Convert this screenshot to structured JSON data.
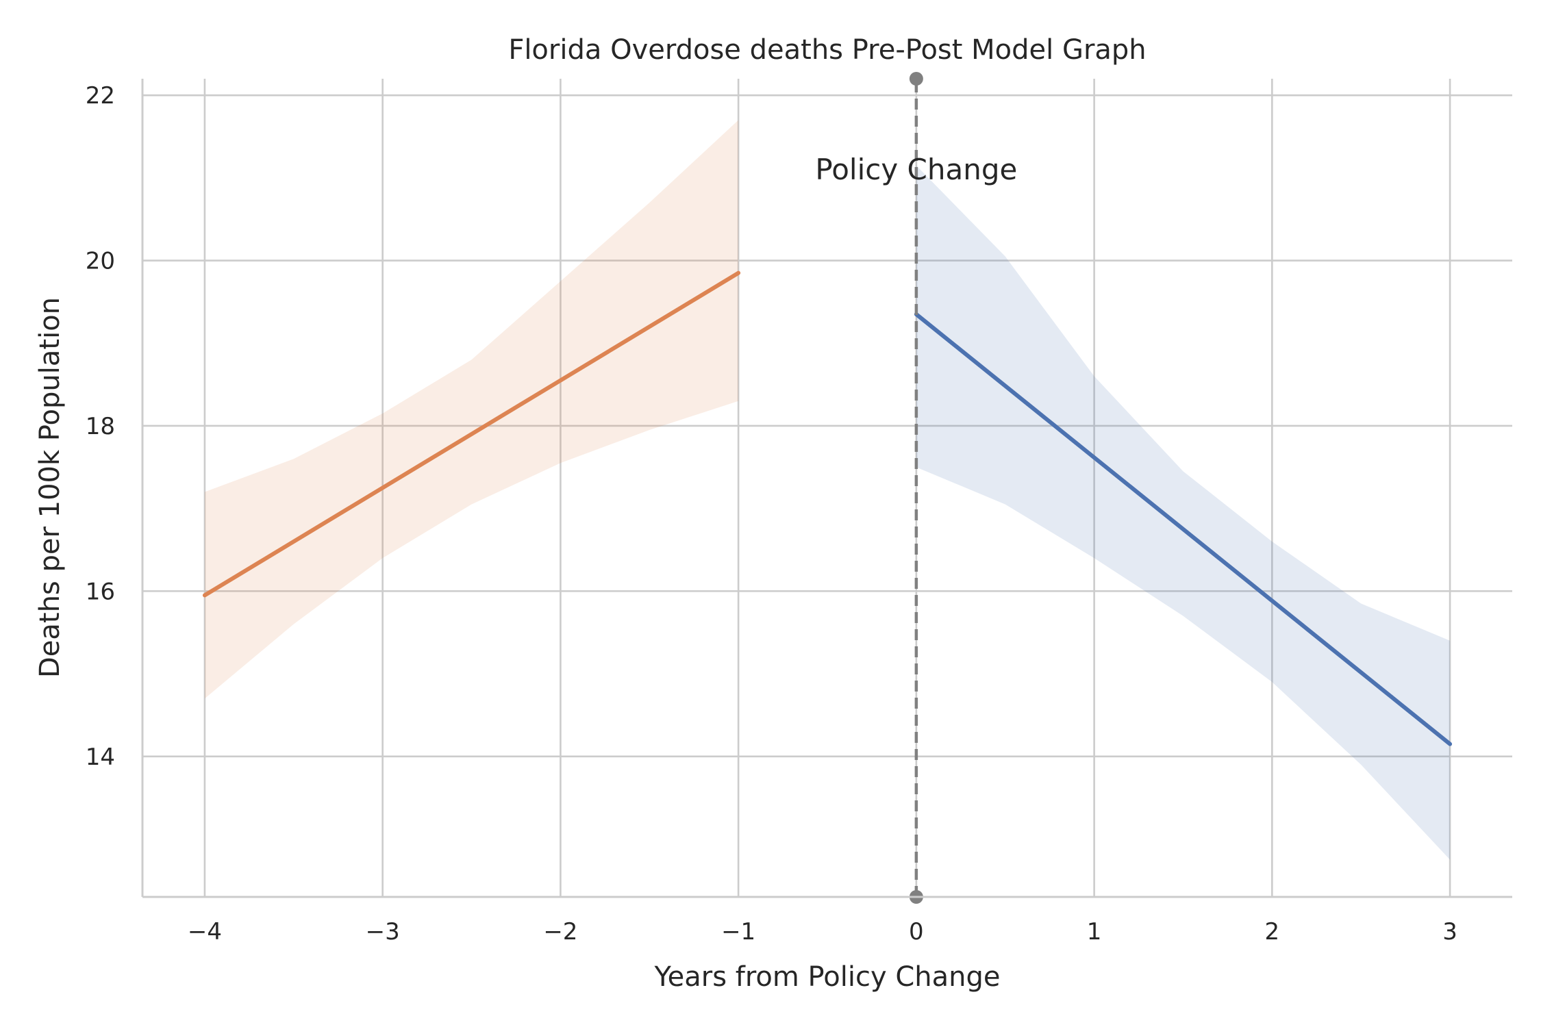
{
  "chart_data": {
    "type": "line",
    "title": "Florida Overdose deaths Pre-Post Model Graph",
    "xlabel": "Years from Policy Change",
    "ylabel": "Deaths per 100k Population",
    "xlim": [
      -4.35,
      3.35
    ],
    "ylim": [
      12.3,
      22.2
    ],
    "x_ticks": [
      -4,
      -3,
      -2,
      -1,
      0,
      1,
      2,
      3
    ],
    "x_tick_labels": [
      "−4",
      "−3",
      "−2",
      "−1",
      "0",
      "1",
      "2",
      "3"
    ],
    "y_ticks": [
      14,
      16,
      18,
      20,
      22
    ],
    "y_tick_labels": [
      "14",
      "16",
      "18",
      "20",
      "22"
    ],
    "grid": true,
    "series": [
      {
        "color": "#dd8452",
        "band_color": "#dd8452",
        "x": [
          -4,
          -1
        ],
        "y": [
          15.95,
          19.85
        ],
        "ci_lower": [
          [
            -4,
            14.7
          ],
          [
            -3.5,
            15.6
          ],
          [
            -3,
            16.4
          ],
          [
            -2.5,
            17.05
          ],
          [
            -2,
            17.55
          ],
          [
            -1.5,
            17.95
          ],
          [
            -1,
            18.3
          ]
        ],
        "ci_upper": [
          [
            -4,
            17.2
          ],
          [
            -3.5,
            17.6
          ],
          [
            -3,
            18.15
          ],
          [
            -2.5,
            18.8
          ],
          [
            -2,
            19.75
          ],
          [
            -1.5,
            20.7
          ],
          [
            -1,
            21.7
          ]
        ]
      },
      {
        "color": "#4c72b0",
        "band_color": "#4c72b0",
        "x": [
          0,
          3
        ],
        "y": [
          19.35,
          14.15
        ],
        "ci_lower": [
          [
            0,
            17.5
          ],
          [
            0.5,
            17.05
          ],
          [
            1,
            16.4
          ],
          [
            1.5,
            15.7
          ],
          [
            2,
            14.9
          ],
          [
            2.5,
            13.9
          ],
          [
            3,
            12.75
          ]
        ],
        "ci_upper": [
          [
            0,
            21.15
          ],
          [
            0.5,
            20.05
          ],
          [
            1,
            18.6
          ],
          [
            1.5,
            17.45
          ],
          [
            2,
            16.6
          ],
          [
            2.5,
            15.85
          ],
          [
            3,
            15.4
          ]
        ]
      }
    ],
    "vline": {
      "x": 0,
      "color": "#808080",
      "style": "dashed",
      "endpoints": [
        12.3,
        22.2
      ]
    },
    "annotations": [
      {
        "text": "Policy Change",
        "x": 0,
        "y": 21.1
      }
    ]
  }
}
